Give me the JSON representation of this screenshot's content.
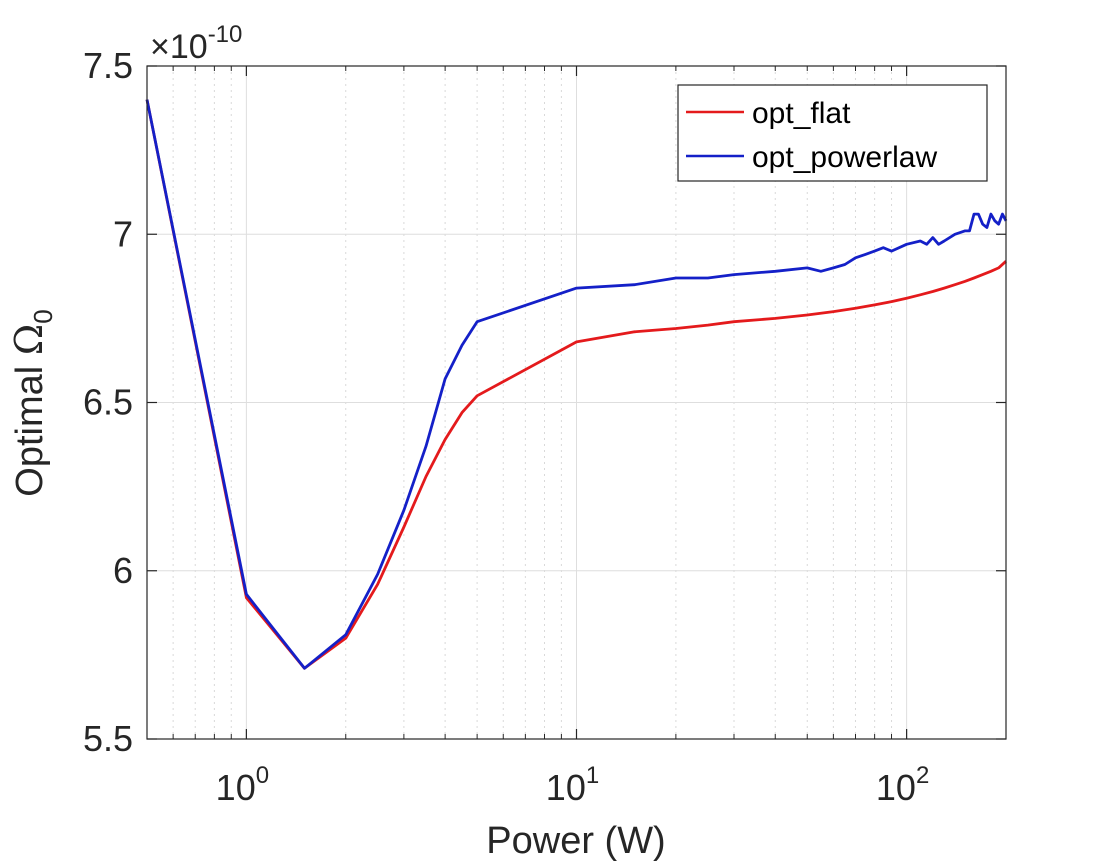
{
  "chart_data": {
    "type": "line",
    "xscale": "log",
    "xlim": [
      0.5,
      200
    ],
    "ylim": [
      5.5,
      7.5
    ],
    "y_multiplier_base": "×10",
    "y_multiplier_exp": "-10",
    "xlabel": "Power (W)",
    "ylabel_main": "Optimal ",
    "ylabel_symbol": "Ω",
    "ylabel_sub": "0",
    "grid": true,
    "legend_position": "top-right",
    "y_ticks": [
      {
        "value": 5.5,
        "label": "5.5"
      },
      {
        "value": 6,
        "label": "6"
      },
      {
        "value": 6.5,
        "label": "6.5"
      },
      {
        "value": 7,
        "label": "7"
      },
      {
        "value": 7.5,
        "label": "7.5"
      }
    ],
    "x_ticks": [
      {
        "value": 1,
        "base": "10",
        "exp": "0"
      },
      {
        "value": 10,
        "base": "10",
        "exp": "1"
      },
      {
        "value": 100,
        "base": "10",
        "exp": "2"
      }
    ],
    "series": [
      {
        "name": "opt_flat",
        "color": "#e41a1c",
        "x": [
          0.5,
          1,
          1.5,
          2,
          2.5,
          3,
          3.5,
          4,
          4.5,
          5,
          10,
          15,
          20,
          25,
          30,
          40,
          50,
          60,
          70,
          80,
          90,
          100,
          110,
          120,
          130,
          140,
          150,
          160,
          170,
          180,
          190,
          200
        ],
        "y": [
          7.4,
          5.92,
          5.71,
          5.8,
          5.96,
          6.13,
          6.28,
          6.39,
          6.47,
          6.52,
          6.68,
          6.71,
          6.72,
          6.73,
          6.74,
          6.75,
          6.76,
          6.77,
          6.78,
          6.79,
          6.8,
          6.81,
          6.82,
          6.83,
          6.84,
          6.85,
          6.86,
          6.87,
          6.88,
          6.89,
          6.9,
          6.92
        ]
      },
      {
        "name": "opt_powerlaw",
        "color": "#1420c8",
        "x": [
          0.5,
          1,
          1.5,
          2,
          2.5,
          3,
          3.5,
          4,
          4.5,
          5,
          10,
          15,
          20,
          25,
          30,
          40,
          50,
          55,
          60,
          65,
          70,
          75,
          80,
          85,
          90,
          100,
          110,
          115,
          120,
          125,
          130,
          140,
          150,
          155,
          160,
          165,
          170,
          175,
          180,
          185,
          190,
          195,
          200
        ],
        "y": [
          7.4,
          5.93,
          5.71,
          5.81,
          5.99,
          6.18,
          6.37,
          6.57,
          6.67,
          6.74,
          6.84,
          6.85,
          6.87,
          6.87,
          6.88,
          6.89,
          6.9,
          6.89,
          6.9,
          6.91,
          6.93,
          6.94,
          6.95,
          6.96,
          6.95,
          6.97,
          6.98,
          6.97,
          6.99,
          6.97,
          6.98,
          7.0,
          7.01,
          7.01,
          7.06,
          7.06,
          7.03,
          7.02,
          7.06,
          7.04,
          7.03,
          7.06,
          7.04
        ]
      }
    ]
  }
}
